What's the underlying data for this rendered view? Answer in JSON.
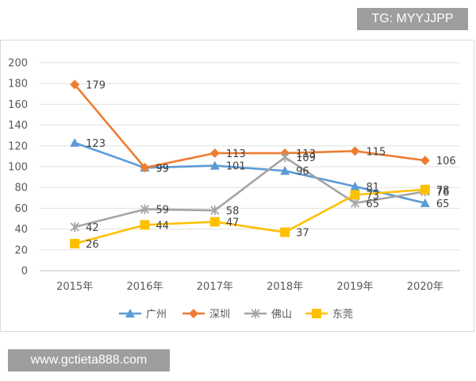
{
  "watermark_top": "TG: MYYJJPP",
  "watermark_bottom": "www.gctieta888.com",
  "chart_data": {
    "type": "line",
    "title": "",
    "xlabel": "",
    "ylabel": "",
    "categories": [
      "2015年",
      "2016年",
      "2017年",
      "2018年",
      "2019年",
      "2020年"
    ],
    "ylim": [
      0,
      200
    ],
    "yticks": [
      0,
      20,
      40,
      60,
      80,
      100,
      120,
      140,
      160,
      180,
      200
    ],
    "grid": true,
    "legend_position": "bottom",
    "series": [
      {
        "name": "广州",
        "values": [
          123,
          99,
          101,
          96,
          81,
          65
        ],
        "color": "#5b9bd5",
        "marker": "triangle"
      },
      {
        "name": "深圳",
        "values": [
          179,
          99,
          113,
          113,
          115,
          106
        ],
        "color": "#ed7d31",
        "marker": "diamond"
      },
      {
        "name": "佛山",
        "values": [
          42,
          59,
          58,
          109,
          65,
          76
        ],
        "color": "#a5a5a5",
        "marker": "star"
      },
      {
        "name": "东莞",
        "values": [
          26,
          44,
          47,
          37,
          73,
          78
        ],
        "color": "#ffc000",
        "marker": "square"
      }
    ]
  }
}
